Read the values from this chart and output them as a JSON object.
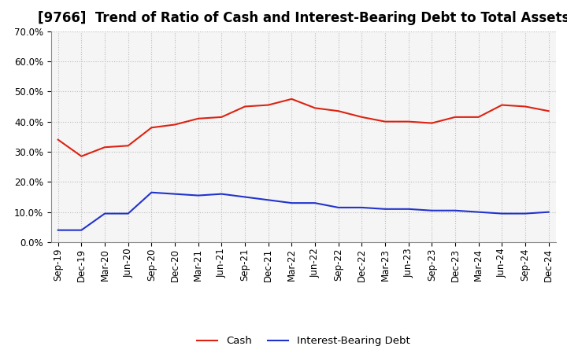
{
  "title": "[9766]  Trend of Ratio of Cash and Interest-Bearing Debt to Total Assets",
  "labels": [
    "Sep-19",
    "Dec-19",
    "Mar-20",
    "Jun-20",
    "Sep-20",
    "Dec-20",
    "Mar-21",
    "Jun-21",
    "Sep-21",
    "Dec-21",
    "Mar-22",
    "Jun-22",
    "Sep-22",
    "Dec-22",
    "Mar-23",
    "Jun-23",
    "Sep-23",
    "Dec-23",
    "Mar-24",
    "Jun-24",
    "Sep-24",
    "Dec-24"
  ],
  "cash": [
    34.0,
    28.5,
    31.5,
    32.0,
    38.0,
    39.0,
    41.0,
    41.5,
    45.0,
    45.5,
    47.5,
    44.5,
    43.5,
    41.5,
    40.0,
    40.0,
    39.5,
    41.5,
    41.5,
    45.5,
    45.0,
    43.5
  ],
  "debt": [
    4.0,
    4.0,
    9.5,
    9.5,
    16.5,
    16.0,
    15.5,
    16.0,
    15.0,
    14.0,
    13.0,
    13.0,
    11.5,
    11.5,
    11.0,
    11.0,
    10.5,
    10.5,
    10.0,
    9.5,
    9.5,
    10.0
  ],
  "cash_color": "#dd2211",
  "debt_color": "#2233cc",
  "bg_color": "#ffffff",
  "plot_bg_color": "#f5f5f5",
  "grid_color": "#bbbbbb",
  "ylim": [
    0,
    70
  ],
  "yticks": [
    0,
    10,
    20,
    30,
    40,
    50,
    60,
    70
  ],
  "legend_cash": "Cash",
  "legend_debt": "Interest-Bearing Debt",
  "title_fontsize": 12,
  "tick_fontsize": 8.5,
  "legend_fontsize": 9.5,
  "line_width": 1.5
}
